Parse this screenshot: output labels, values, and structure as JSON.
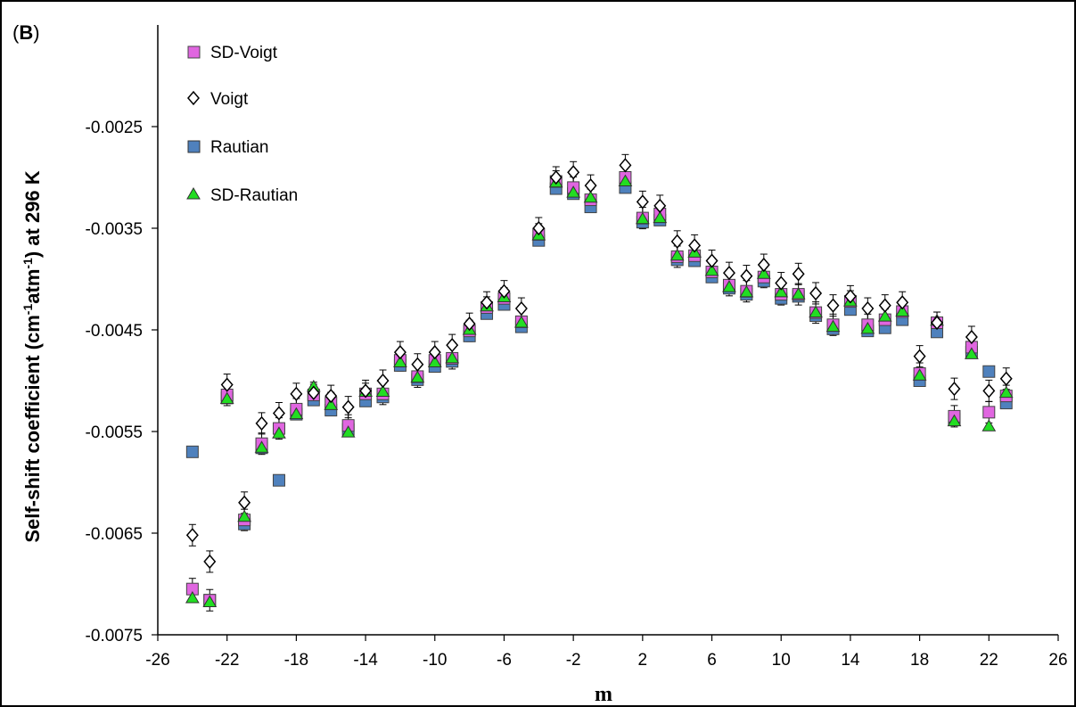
{
  "chart_data": {
    "type": "scatter",
    "panel_label_open": "(",
    "panel_label_letter": "B",
    "panel_label_close": ")",
    "xlabel": "m",
    "ylabel": {
      "p1": "Self-shift coefficient (cm",
      "sup1": "-1",
      "p2": "atm",
      "sup2": "-1",
      "p3": ") at 296 K"
    },
    "xlim": [
      -26,
      26
    ],
    "ylim": [
      -0.0075,
      -0.0015
    ],
    "x_ticks": [
      "-26",
      "-22",
      "-18",
      "-14",
      "-10",
      "-6",
      "-2",
      "2",
      "6",
      "10",
      "14",
      "18",
      "22",
      "26"
    ],
    "y_ticks": [
      "-0.0025",
      "-0.0035",
      "-0.0045",
      "-0.0055",
      "-0.0065",
      "-0.0075"
    ],
    "y_tick_values": [
      -0.0025,
      -0.0035,
      -0.0045,
      -0.0055,
      -0.0065,
      -0.0075
    ],
    "x_tick_values": [
      -26,
      -22,
      -18,
      -14,
      -10,
      -6,
      -2,
      2,
      6,
      10,
      14,
      18,
      22,
      26
    ],
    "legend_position": "top-left",
    "grid": false,
    "series": [
      {
        "name": "SD-Voigt",
        "marker": "square",
        "color": "#e066e0",
        "points": [
          [
            -24,
            -0.00705
          ],
          [
            -23,
            -0.00716
          ],
          [
            -22,
            -0.00514
          ],
          [
            -21,
            -0.00637
          ],
          [
            -20,
            -0.00562
          ],
          [
            -19,
            -0.00547
          ],
          [
            -18,
            -0.00528
          ],
          [
            -17,
            -0.00514
          ],
          [
            -16,
            -0.00522
          ],
          [
            -15,
            -0.00544
          ],
          [
            -14,
            -0.00513
          ],
          [
            -13,
            -0.00513
          ],
          [
            -12,
            -0.0048
          ],
          [
            -11,
            -0.00496
          ],
          [
            -10,
            -0.0048
          ],
          [
            -9,
            -0.00478
          ],
          [
            -8,
            -0.00451
          ],
          [
            -7,
            -0.00428
          ],
          [
            -6,
            -0.00419
          ],
          [
            -5,
            -0.00442
          ],
          [
            -4,
            -0.00356
          ],
          [
            -3,
            -0.00304
          ],
          [
            -2,
            -0.0031
          ],
          [
            -1,
            -0.00322
          ],
          [
            1,
            -0.003
          ],
          [
            2,
            -0.0034
          ],
          [
            3,
            -0.00336
          ],
          [
            4,
            -0.00378
          ],
          [
            5,
            -0.00377
          ],
          [
            6,
            -0.00393
          ],
          [
            7,
            -0.00406
          ],
          [
            8,
            -0.00412
          ],
          [
            9,
            -0.00398
          ],
          [
            10,
            -0.00415
          ],
          [
            11,
            -0.00415
          ],
          [
            12,
            -0.00433
          ],
          [
            13,
            -0.00445
          ],
          [
            14,
            -0.00422
          ],
          [
            15,
            -0.00445
          ],
          [
            16,
            -0.0044
          ],
          [
            17,
            -0.00432
          ],
          [
            18,
            -0.00493
          ],
          [
            19,
            -0.00443
          ],
          [
            20,
            -0.00535
          ],
          [
            21,
            -0.00467
          ],
          [
            22,
            -0.00531
          ],
          [
            23,
            -0.00515
          ]
        ]
      },
      {
        "name": "Voigt",
        "marker": "diamond-open",
        "color": "#000000",
        "points": [
          [
            -24,
            -0.00652
          ],
          [
            -23,
            -0.00678
          ],
          [
            -22,
            -0.00504
          ],
          [
            -21,
            -0.0062
          ],
          [
            -20,
            -0.00542
          ],
          [
            -19,
            -0.00532
          ],
          [
            -18,
            -0.00513
          ],
          [
            -17,
            -0.00512
          ],
          [
            -16,
            -0.00515
          ],
          [
            -15,
            -0.00526
          ],
          [
            -14,
            -0.0051
          ],
          [
            -13,
            -0.005
          ],
          [
            -12,
            -0.00472
          ],
          [
            -11,
            -0.00484
          ],
          [
            -10,
            -0.00472
          ],
          [
            -9,
            -0.00465
          ],
          [
            -8,
            -0.00444
          ],
          [
            -7,
            -0.00423
          ],
          [
            -6,
            -0.00412
          ],
          [
            -5,
            -0.00429
          ],
          [
            -4,
            -0.0035
          ],
          [
            -3,
            -0.003
          ],
          [
            -2,
            -0.00295
          ],
          [
            -1,
            -0.00308
          ],
          [
            1,
            -0.00288
          ],
          [
            2,
            -0.00324
          ],
          [
            3,
            -0.00328
          ],
          [
            4,
            -0.00363
          ],
          [
            5,
            -0.00367
          ],
          [
            6,
            -0.00382
          ],
          [
            7,
            -0.00394
          ],
          [
            8,
            -0.00397
          ],
          [
            9,
            -0.00386
          ],
          [
            10,
            -0.00404
          ],
          [
            11,
            -0.00395
          ],
          [
            12,
            -0.00414
          ],
          [
            13,
            -0.00426
          ],
          [
            14,
            -0.00417
          ],
          [
            15,
            -0.00429
          ],
          [
            16,
            -0.00426
          ],
          [
            17,
            -0.00423
          ],
          [
            18,
            -0.00476
          ],
          [
            19,
            -0.00443
          ],
          [
            20,
            -0.00508
          ],
          [
            21,
            -0.00457
          ],
          [
            22,
            -0.0051
          ],
          [
            23,
            -0.00498
          ]
        ]
      },
      {
        "name": "Rautian",
        "marker": "square",
        "color": "#4f81bd",
        "points": [
          [
            -24,
            -0.0057
          ],
          [
            -23,
            -0.00716
          ],
          [
            -22,
            -0.00517
          ],
          [
            -21,
            -0.00641
          ],
          [
            -20,
            -0.00566
          ],
          [
            -19,
            -0.00598
          ],
          [
            -18,
            -0.00533
          ],
          [
            -17,
            -0.00519
          ],
          [
            -16,
            -0.00529
          ],
          [
            -15,
            -0.00548
          ],
          [
            -14,
            -0.0052
          ],
          [
            -13,
            -0.00516
          ],
          [
            -12,
            -0.00485
          ],
          [
            -11,
            -0.00499
          ],
          [
            -10,
            -0.00486
          ],
          [
            -9,
            -0.00481
          ],
          [
            -8,
            -0.00456
          ],
          [
            -7,
            -0.00434
          ],
          [
            -6,
            -0.00425
          ],
          [
            -5,
            -0.00447
          ],
          [
            -4,
            -0.00362
          ],
          [
            -3,
            -0.00311
          ],
          [
            -2,
            -0.00316
          ],
          [
            -1,
            -0.00329
          ],
          [
            1,
            -0.0031
          ],
          [
            2,
            -0.00344
          ],
          [
            3,
            -0.00342
          ],
          [
            4,
            -0.00381
          ],
          [
            5,
            -0.00382
          ],
          [
            6,
            -0.00398
          ],
          [
            7,
            -0.00409
          ],
          [
            8,
            -0.00415
          ],
          [
            9,
            -0.00402
          ],
          [
            10,
            -0.00419
          ],
          [
            11,
            -0.00417
          ],
          [
            12,
            -0.00436
          ],
          [
            13,
            -0.00449
          ],
          [
            14,
            -0.0043
          ],
          [
            15,
            -0.00451
          ],
          [
            16,
            -0.00448
          ],
          [
            17,
            -0.0044
          ],
          [
            18,
            -0.005
          ],
          [
            19,
            -0.00452
          ],
          [
            20,
            -0.00538
          ],
          [
            21,
            -0.00472
          ],
          [
            22,
            -0.00491
          ],
          [
            23,
            -0.00522
          ]
        ]
      },
      {
        "name": "SD-Rautian",
        "marker": "triangle",
        "color": "#22dd22",
        "points": [
          [
            -24,
            -0.00714
          ],
          [
            -23,
            -0.00718
          ],
          [
            -22,
            -0.00518
          ],
          [
            -21,
            -0.00634
          ],
          [
            -20,
            -0.00566
          ],
          [
            -19,
            -0.00552
          ],
          [
            -18,
            -0.00533
          ],
          [
            -17,
            -0.00506
          ],
          [
            -16,
            -0.00524
          ],
          [
            -15,
            -0.00551
          ],
          [
            -14,
            -0.00511
          ],
          [
            -13,
            -0.00511
          ],
          [
            -12,
            -0.00482
          ],
          [
            -11,
            -0.00497
          ],
          [
            -10,
            -0.00482
          ],
          [
            -9,
            -0.00478
          ],
          [
            -8,
            -0.0045
          ],
          [
            -7,
            -0.00427
          ],
          [
            -6,
            -0.00418
          ],
          [
            -5,
            -0.00443
          ],
          [
            -4,
            -0.00357
          ],
          [
            -3,
            -0.00305
          ],
          [
            -2,
            -0.00315
          ],
          [
            -1,
            -0.0032
          ],
          [
            1,
            -0.00304
          ],
          [
            2,
            -0.00341
          ],
          [
            3,
            -0.0034
          ],
          [
            4,
            -0.00377
          ],
          [
            5,
            -0.00374
          ],
          [
            6,
            -0.00392
          ],
          [
            7,
            -0.00408
          ],
          [
            8,
            -0.00413
          ],
          [
            9,
            -0.00395
          ],
          [
            10,
            -0.00413
          ],
          [
            11,
            -0.00415
          ],
          [
            12,
            -0.00433
          ],
          [
            13,
            -0.00447
          ],
          [
            14,
            -0.00422
          ],
          [
            15,
            -0.00449
          ],
          [
            16,
            -0.00437
          ],
          [
            17,
            -0.00432
          ],
          [
            18,
            -0.00495
          ],
          [
            19,
            -0.00441
          ],
          [
            20,
            -0.0054
          ],
          [
            21,
            -0.00474
          ],
          [
            22,
            -0.00545
          ],
          [
            23,
            -0.00512
          ]
        ]
      }
    ]
  }
}
